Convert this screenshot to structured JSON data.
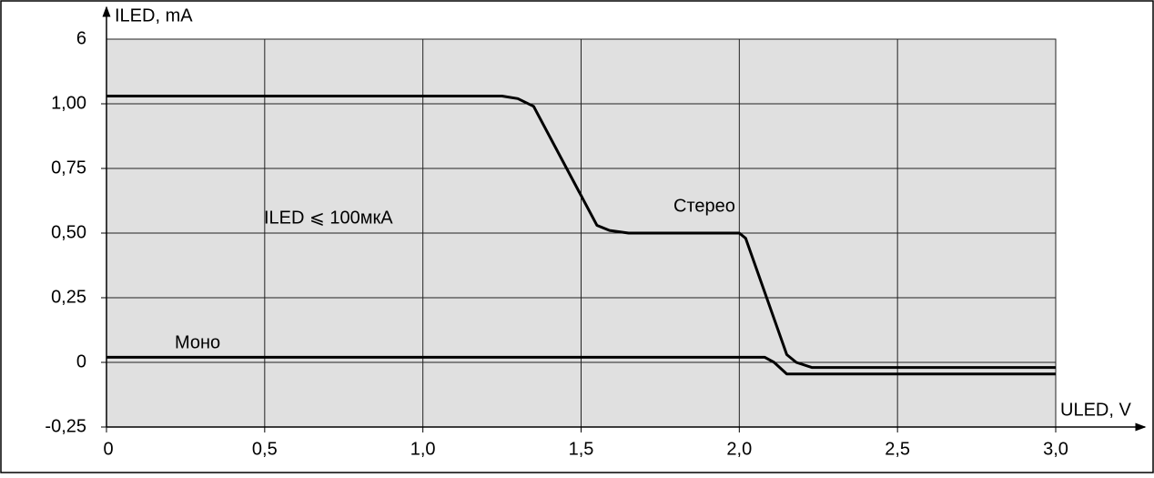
{
  "chart_data": {
    "type": "line",
    "y_axis_label": "ILED, mA",
    "x_axis_label": "ULED, V",
    "annotation": "ILED ⩽ 100мкА",
    "y_axis_top_label": "6",
    "xlim": [
      0,
      3.0
    ],
    "ylim": [
      -0.25,
      1.25
    ],
    "xticks": [
      0,
      {
        "value": 0.5,
        "label": "0,5"
      },
      {
        "value": 1.0,
        "label": "1,0"
      },
      {
        "value": 1.5,
        "label": "1,5"
      },
      {
        "value": 2.0,
        "label": "2,0"
      },
      {
        "value": 2.5,
        "label": "2,5"
      },
      {
        "value": 3.0,
        "label": "3,0"
      }
    ],
    "yticks": [
      {
        "value": -0.25,
        "label": "-0,25"
      },
      0,
      {
        "value": 0.25,
        "label": "0,25"
      },
      {
        "value": 0.5,
        "label": "0,50"
      },
      {
        "value": 0.75,
        "label": "0,75"
      },
      {
        "value": 1.0,
        "label": "1,00"
      }
    ],
    "grid": true,
    "background": "#e0e0e0",
    "series": [
      {
        "name": "Стерео",
        "color": "#000000",
        "x": [
          0,
          1.25,
          1.3,
          1.35,
          1.55,
          1.59,
          1.65,
          2.0,
          2.02,
          2.15,
          2.18,
          2.23,
          3.0
        ],
        "values": [
          1.03,
          1.03,
          1.02,
          0.99,
          0.53,
          0.51,
          0.5,
          0.5,
          0.48,
          0.03,
          0.0,
          -0.02,
          -0.02
        ]
      },
      {
        "name": "Моно",
        "color": "#000000",
        "x": [
          0,
          2.08,
          2.11,
          2.15,
          3.0
        ],
        "values": [
          0.02,
          0.02,
          0.0,
          -0.045,
          -0.045
        ]
      }
    ]
  }
}
